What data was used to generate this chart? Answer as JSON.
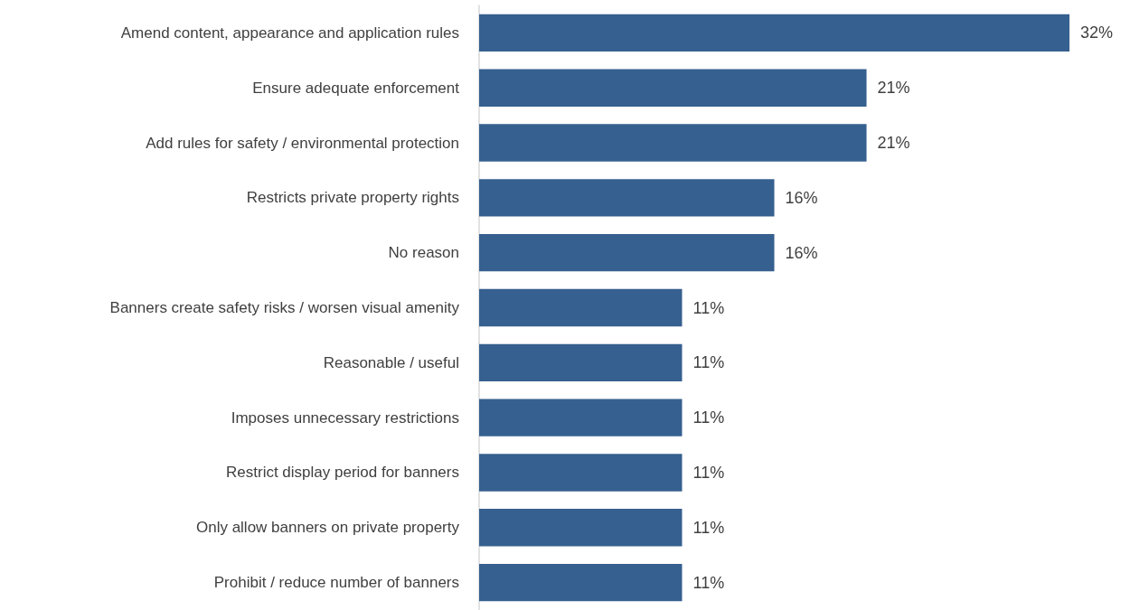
{
  "chart_data": {
    "type": "bar",
    "orientation": "horizontal",
    "categories": [
      "Amend content, appearance and application rules",
      "Ensure adequate enforcement",
      "Add rules for safety / environmental protection",
      "Restricts private property rights",
      "No reason",
      "Banners create safety risks / worsen visual amenity",
      "Reasonable / useful",
      "Imposes unnecessary restrictions",
      "Restrict display period for banners",
      "Only allow banners on private property",
      "Prohibit / reduce number of banners"
    ],
    "values": [
      32,
      21,
      21,
      16,
      16,
      11,
      11,
      11,
      11,
      11,
      11
    ],
    "value_labels": [
      "32%",
      "21%",
      "21%",
      "16%",
      "16%",
      "11%",
      "11%",
      "11%",
      "11%",
      "11%",
      "11%"
    ],
    "color": "#36608f"
  }
}
